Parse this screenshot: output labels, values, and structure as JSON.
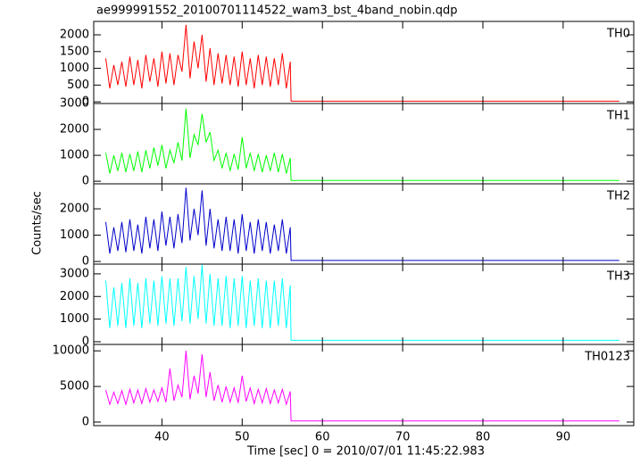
{
  "chart_data": [
    {
      "type": "line",
      "title": "ae999991552_20100701114522_wam3_bst_4band_nobin.qdp",
      "annotation": "TH0",
      "color": "#ff0000",
      "x": [
        33,
        33.5,
        34,
        34.5,
        35,
        35.5,
        36,
        36.5,
        37,
        37.5,
        38,
        38.5,
        39,
        39.5,
        40,
        40.5,
        41,
        41.5,
        42,
        42.5,
        43,
        43.5,
        44,
        44.5,
        45,
        45.5,
        46,
        46.5,
        47,
        47.5,
        48,
        48.5,
        49,
        49.5,
        50,
        50.5,
        51,
        51.5,
        52,
        52.5,
        53,
        53.5,
        54,
        54.5,
        55,
        55.5,
        56,
        56.1,
        97
      ],
      "values": [
        1300,
        400,
        1100,
        500,
        1200,
        450,
        1350,
        500,
        1250,
        400,
        1400,
        600,
        1300,
        450,
        1500,
        550,
        1450,
        500,
        1400,
        900,
        2300,
        700,
        1800,
        1000,
        2000,
        600,
        1600,
        500,
        1450,
        550,
        1400,
        500,
        1350,
        450,
        1500,
        500,
        1300,
        400,
        1400,
        500,
        1350,
        450,
        1300,
        500,
        1450,
        400,
        1200,
        20,
        20
      ],
      "xlim": [
        31.5,
        98.8
      ],
      "ylim": [
        -50,
        2400
      ],
      "yticks": [
        0,
        500,
        1000,
        1500,
        2000
      ]
    },
    {
      "type": "line",
      "annotation": "TH1",
      "color": "#00ff00",
      "x": [
        33,
        33.5,
        34,
        34.5,
        35,
        35.5,
        36,
        36.5,
        37,
        37.5,
        38,
        38.5,
        39,
        39.5,
        40,
        40.5,
        41,
        41.5,
        42,
        42.5,
        43,
        43.5,
        44,
        44.5,
        45,
        45.5,
        46,
        46.5,
        47,
        47.5,
        48,
        48.5,
        49,
        49.5,
        50,
        50.5,
        51,
        51.5,
        52,
        52.5,
        53,
        53.5,
        54,
        54.5,
        55,
        55.5,
        56,
        56.1,
        97
      ],
      "values": [
        1100,
        300,
        1000,
        400,
        1100,
        350,
        1050,
        400,
        1150,
        350,
        1200,
        500,
        1300,
        600,
        1400,
        500,
        1200,
        700,
        1500,
        800,
        2800,
        900,
        1800,
        1400,
        2600,
        1500,
        1900,
        800,
        1200,
        500,
        1100,
        400,
        1050,
        450,
        1700,
        500,
        1100,
        400,
        1050,
        350,
        1000,
        400,
        1100,
        350,
        1050,
        300,
        900,
        30,
        30
      ],
      "xlim": [
        31.5,
        98.8
      ],
      "ylim": [
        -100,
        3000
      ],
      "yticks": [
        0,
        1000,
        2000,
        3000
      ]
    },
    {
      "type": "line",
      "annotation": "TH2",
      "color": "#0000cc",
      "ylabel": "Counts/sec",
      "x": [
        33,
        33.5,
        34,
        34.5,
        35,
        35.5,
        36,
        36.5,
        37,
        37.5,
        38,
        38.5,
        39,
        39.5,
        40,
        40.5,
        41,
        41.5,
        42,
        42.5,
        43,
        43.5,
        44,
        44.5,
        45,
        45.5,
        46,
        46.5,
        47,
        47.5,
        48,
        48.5,
        49,
        49.5,
        50,
        50.5,
        51,
        51.5,
        52,
        52.5,
        53,
        53.5,
        54,
        54.5,
        55,
        55.5,
        56,
        56.1,
        97
      ],
      "values": [
        1500,
        300,
        1300,
        400,
        1500,
        350,
        1600,
        400,
        1400,
        300,
        1700,
        500,
        1600,
        400,
        1900,
        600,
        1700,
        500,
        1800,
        700,
        2800,
        800,
        2000,
        1000,
        2700,
        600,
        2000,
        500,
        1600,
        400,
        1700,
        400,
        1600,
        300,
        1800,
        400,
        1500,
        300,
        1600,
        400,
        1500,
        300,
        1400,
        400,
        1600,
        300,
        1300,
        40,
        40
      ],
      "xlim": [
        31.5,
        98.8
      ],
      "ylim": [
        -100,
        2950
      ],
      "yticks": [
        0,
        1000,
        2000
      ]
    },
    {
      "type": "line",
      "annotation": "TH3",
      "color": "#00ffff",
      "x": [
        33,
        33.5,
        34,
        34.5,
        35,
        35.5,
        36,
        36.5,
        37,
        37.5,
        38,
        38.5,
        39,
        39.5,
        40,
        40.5,
        41,
        41.5,
        42,
        42.5,
        43,
        43.5,
        44,
        44.5,
        45,
        45.5,
        46,
        46.5,
        47,
        47.5,
        48,
        48.5,
        49,
        49.5,
        50,
        50.5,
        51,
        51.5,
        52,
        52.5,
        53,
        53.5,
        54,
        54.5,
        55,
        55.5,
        56,
        56.1,
        97
      ],
      "values": [
        2700,
        600,
        2400,
        700,
        2600,
        600,
        2800,
        700,
        2600,
        600,
        2800,
        800,
        2700,
        700,
        2900,
        800,
        2800,
        700,
        2800,
        900,
        3300,
        800,
        2900,
        1000,
        3400,
        800,
        3000,
        700,
        2800,
        700,
        2900,
        600,
        2800,
        700,
        2900,
        600,
        2700,
        700,
        2800,
        600,
        2700,
        600,
        2700,
        700,
        2800,
        600,
        2500,
        60,
        60
      ],
      "xlim": [
        31.5,
        98.8
      ],
      "ylim": [
        -120,
        3430
      ],
      "yticks": [
        0,
        1000,
        2000,
        3000
      ]
    },
    {
      "type": "line",
      "annotation": "TH0123",
      "color": "#ff00ff",
      "xlabel": "Time [sec] 0 = 2010/07/01 11:45:22.983",
      "x": [
        33,
        33.5,
        34,
        34.5,
        35,
        35.5,
        36,
        36.5,
        37,
        37.5,
        38,
        38.5,
        39,
        39.5,
        40,
        40.5,
        41,
        41.5,
        42,
        42.5,
        43,
        43.5,
        44,
        44.5,
        45,
        45.5,
        46,
        46.5,
        47,
        47.5,
        48,
        48.5,
        49,
        49.5,
        50,
        50.5,
        51,
        51.5,
        52,
        52.5,
        53,
        53.5,
        54,
        54.5,
        55,
        55.5,
        56,
        56.1,
        97
      ],
      "values": [
        4500,
        2500,
        4200,
        2600,
        4400,
        2500,
        4600,
        2700,
        4500,
        2600,
        4700,
        2800,
        4500,
        2900,
        4800,
        2800,
        7500,
        3000,
        5200,
        3500,
        10000,
        3200,
        6500,
        4000,
        9500,
        3500,
        7000,
        3000,
        5200,
        2800,
        5000,
        2800,
        4800,
        2700,
        6500,
        2900,
        4800,
        2600,
        4600,
        2700,
        4700,
        2600,
        4500,
        2700,
        4600,
        2500,
        4300,
        150,
        150
      ],
      "xlim": [
        31.5,
        98.8
      ],
      "ylim": [
        -500,
        10900
      ],
      "yticks": [
        0,
        5000,
        10000
      ],
      "xticks": [
        40,
        50,
        60,
        70,
        80,
        90
      ]
    }
  ]
}
